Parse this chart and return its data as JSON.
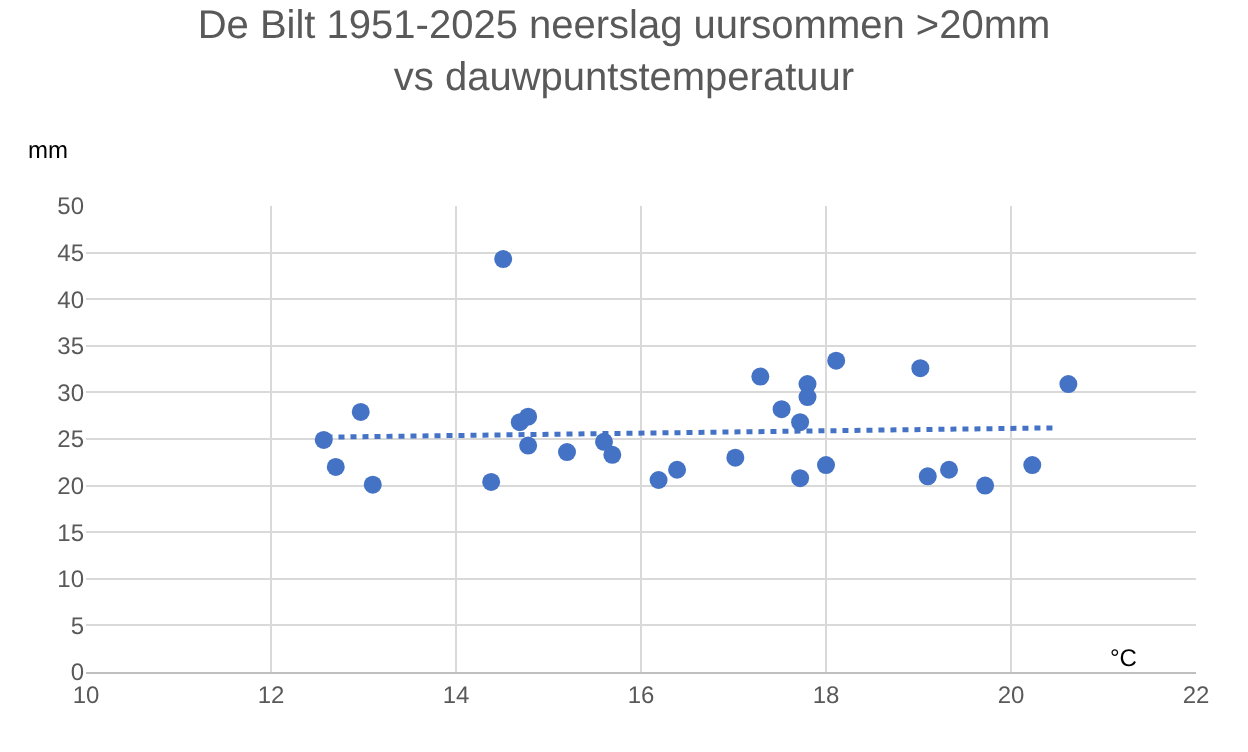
{
  "chart_data": {
    "type": "scatter",
    "title": "De Bilt 1951-2025 neerslag uursommen >20mm\nvs dauwpuntstemperatuur",
    "xlabel": "°C",
    "ylabel": "mm",
    "series": [
      {
        "color": "#4472c4",
        "marker": "circle",
        "x": [
          12.57,
          12.7,
          12.97,
          13.1,
          14.38,
          14.51,
          14.69,
          14.78,
          14.78,
          15.2,
          15.6,
          15.69,
          16.19,
          16.39,
          17.02,
          17.29,
          17.52,
          17.72,
          17.72,
          17.8,
          17.8,
          18.0,
          18.11,
          19.02,
          19.1,
          19.33,
          19.72,
          20.23,
          20.62
        ],
        "values": [
          24.9,
          22.0,
          27.9,
          20.1,
          20.4,
          44.3,
          26.8,
          27.4,
          24.3,
          23.6,
          24.7,
          23.3,
          20.6,
          21.7,
          23.0,
          31.7,
          28.2,
          26.8,
          20.8,
          30.9,
          29.5,
          22.2,
          33.4,
          32.6,
          21.0,
          21.7,
          20.0,
          22.2,
          30.9
        ]
      },
      {
        "type": "line",
        "color": "#4472c4",
        "line_style": "dotted",
        "marker": "none",
        "x": [
          12.6,
          20.5
        ],
        "values": [
          25.2,
          26.2
        ]
      }
    ],
    "xlim": [
      10,
      22
    ],
    "xticks": [
      10,
      12,
      14,
      16,
      18,
      20,
      22
    ],
    "ylim": [
      0,
      50
    ],
    "yticks": [
      0,
      5,
      10,
      15,
      20,
      25,
      30,
      35,
      40,
      45,
      50
    ],
    "grid": true
  }
}
